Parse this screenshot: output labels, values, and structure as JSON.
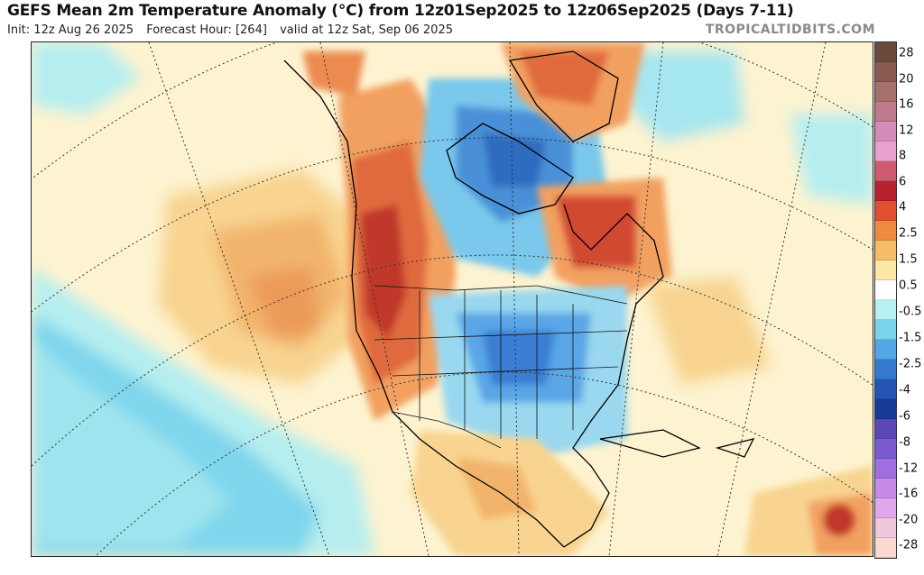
{
  "header": {
    "title": "GEFS Mean 2m Temperature Anomaly (°C) from 12z01Sep2025 to 12z06Sep2025 (Days 7-11)",
    "init": "Init: 12z Aug 26 2025",
    "forecast_hour": "Forecast Hour: [264]",
    "valid": "valid at 12z Sat, Sep 06 2025",
    "brand": "TROPICALTIDBITS.COM"
  },
  "colorbar": {
    "labels": [
      "28",
      "20",
      "16",
      "12",
      "8",
      "6",
      "4",
      "2.5",
      "1.5",
      "0.5",
      "-0.5",
      "-1.5",
      "-2.5",
      "-4",
      "-6",
      "-8",
      "-12",
      "-16",
      "-20",
      "-28"
    ],
    "colors": [
      "#6b4a3a",
      "#8a5a4e",
      "#a8706a",
      "#c07a8e",
      "#d48cb8",
      "#e8a0d0",
      "#d05a70",
      "#b82230",
      "#e05030",
      "#f08a40",
      "#f6bc6a",
      "#fce8a6",
      "#ffffff",
      "#b6f0f0",
      "#7ad4ec",
      "#52a8e6",
      "#3478d0",
      "#2454b4",
      "#163a96",
      "#5a48b4",
      "#7c5ad0",
      "#a070e0",
      "#c88ae8",
      "#e0a8ec",
      "#f0c8dc",
      "#f8d8d0"
    ]
  }
}
